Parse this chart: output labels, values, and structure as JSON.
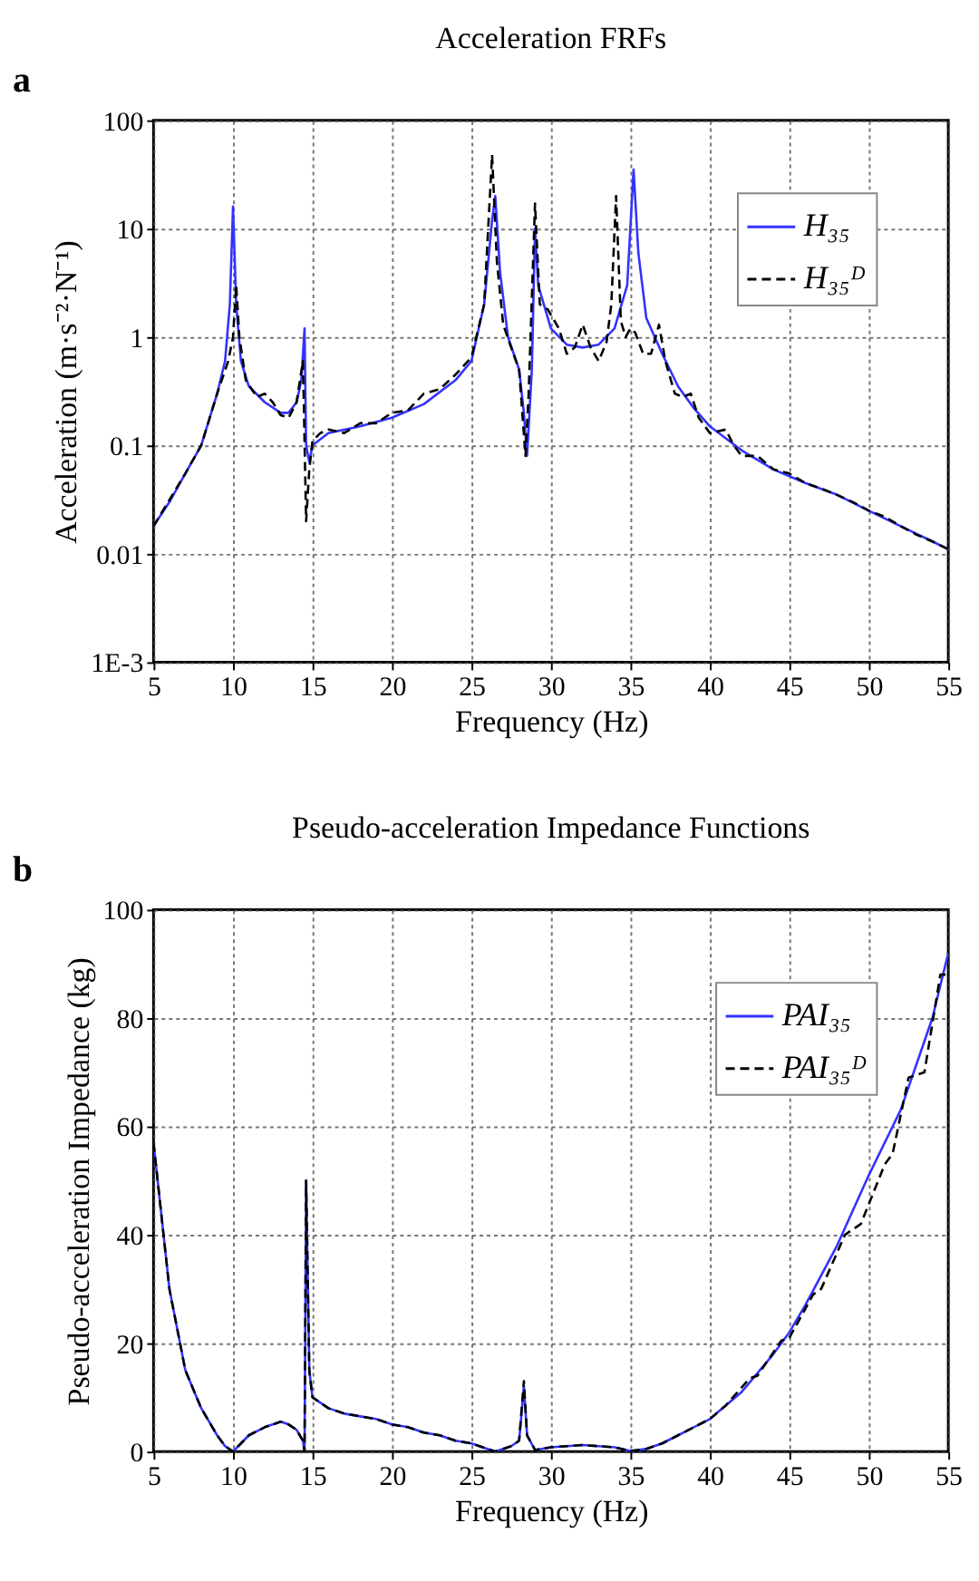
{
  "chart_data": [
    {
      "type": "line",
      "title": "Acceleration FRFs",
      "xlabel": "Frequency (Hz)",
      "ylabel": "Acceleration (m·s⁻²·N⁻¹)",
      "annotations": [
        "a"
      ],
      "log": true,
      "grid": true,
      "legend": "top right",
      "xlim": [
        5,
        55
      ],
      "xticks": [
        5,
        10,
        15,
        20,
        25,
        30,
        35,
        40,
        45,
        50,
        55
      ],
      "ylim": [
        0.001,
        100
      ],
      "yticks": [
        {
          "value": 0.001,
          "label": "1E-3"
        },
        0.01,
        0.1,
        1,
        10,
        100
      ],
      "series": [
        {
          "name": "H₃₅",
          "color": "#3333ff",
          "line_style": "solid",
          "x": [
            5,
            6,
            7,
            8,
            9,
            9.5,
            9.8,
            10,
            10.2,
            10.5,
            11,
            12,
            13,
            13.5,
            14,
            14.3,
            14.5,
            14.6,
            14.8,
            15,
            16,
            18,
            20,
            22,
            24,
            25,
            25.8,
            26.3,
            26.5,
            26.8,
            27.3,
            28,
            28.3,
            28.5,
            28.8,
            29,
            29.2,
            30,
            31,
            32,
            33,
            34,
            34.8,
            35.2,
            35.5,
            36,
            37,
            38,
            39,
            40,
            42,
            44,
            46,
            48,
            50,
            52,
            54,
            55
          ],
          "values": [
            0.018,
            0.03,
            0.055,
            0.1,
            0.3,
            0.6,
            2,
            16,
            2,
            0.6,
            0.35,
            0.25,
            0.2,
            0.2,
            0.25,
            0.4,
            1.2,
            0.1,
            0.07,
            0.1,
            0.13,
            0.15,
            0.18,
            0.24,
            0.4,
            0.6,
            2,
            12,
            20,
            4,
            1,
            0.5,
            0.2,
            0.08,
            0.5,
            10,
            3,
            1.2,
            0.85,
            0.8,
            0.85,
            1.2,
            3,
            35,
            6,
            1.5,
            0.7,
            0.35,
            0.22,
            0.15,
            0.09,
            0.06,
            0.045,
            0.035,
            0.025,
            0.018,
            0.013,
            0.011
          ]
        },
        {
          "name": "H₃₅ᴰ",
          "color": "#000000",
          "line_style": "dashed",
          "x": [
            5,
            7,
            8,
            9,
            9.7,
            10,
            10.2,
            10.4,
            10.8,
            11.5,
            12,
            12.5,
            13,
            13.5,
            14,
            14.4,
            14.6,
            14.8,
            15,
            15.5,
            16,
            17,
            18,
            19,
            20,
            21,
            22,
            23,
            24,
            25,
            25.8,
            26.3,
            26.6,
            27,
            27.5,
            28,
            28.4,
            28.6,
            29,
            29.3,
            29.8,
            30.5,
            31,
            31.5,
            32,
            32.5,
            33,
            33.5,
            33.8,
            34.1,
            34.4,
            34.7,
            35,
            35.3,
            35.8,
            36.3,
            36.8,
            37.2,
            37.8,
            38.3,
            38.8,
            39.3,
            40,
            41,
            41.5,
            42,
            43,
            44,
            45,
            46,
            47,
            48,
            49,
            50,
            51,
            52,
            53,
            54,
            55
          ],
          "values": [
            0.018,
            0.055,
            0.1,
            0.3,
            0.6,
            1,
            3,
            1,
            0.4,
            0.28,
            0.3,
            0.25,
            0.19,
            0.18,
            0.25,
            0.6,
            0.02,
            0.06,
            0.11,
            0.13,
            0.14,
            0.13,
            0.16,
            0.16,
            0.2,
            0.21,
            0.3,
            0.33,
            0.45,
            0.65,
            2,
            48,
            5,
            1.3,
            0.8,
            0.5,
            0.08,
            0.3,
            17,
            2,
            1.8,
            1.2,
            0.7,
            0.8,
            1.3,
            0.8,
            0.6,
            0.9,
            2,
            20,
            1.4,
            1,
            1.2,
            1.1,
            0.7,
            0.7,
            1.3,
            0.6,
            0.3,
            0.28,
            0.3,
            0.18,
            0.13,
            0.14,
            0.1,
            0.08,
            0.08,
            0.06,
            0.055,
            0.045,
            0.04,
            0.035,
            0.03,
            0.025,
            0.022,
            0.018,
            0.015,
            0.013,
            0.011
          ]
        }
      ]
    },
    {
      "type": "line",
      "title": "Pseudo-acceleration Impedance Functions",
      "xlabel": "Frequency (Hz)",
      "ylabel": "Pseudo-acceleration Impedance (kg)",
      "annotations": [
        "b"
      ],
      "grid": true,
      "legend": "top right",
      "xlim": [
        5,
        55
      ],
      "xticks": [
        5,
        10,
        15,
        20,
        25,
        30,
        35,
        40,
        45,
        50,
        55
      ],
      "ylim": [
        0,
        100
      ],
      "yticks": [
        0,
        20,
        40,
        60,
        80,
        100
      ],
      "series": [
        {
          "name": "PAI₃₅",
          "color": "#3333ff",
          "line_style": "solid",
          "x": [
            5,
            6,
            7,
            8,
            9,
            9.5,
            10,
            10.5,
            11,
            12,
            13,
            13.5,
            14,
            14.4,
            14.5,
            14.6,
            14.8,
            15,
            16,
            17,
            18,
            19,
            20,
            21,
            22,
            23,
            24,
            25,
            26,
            26.5,
            27,
            27.5,
            28,
            28.3,
            28.5,
            29,
            30,
            31,
            32,
            33,
            34,
            35,
            36,
            37,
            38,
            40,
            42,
            44,
            45,
            46,
            48,
            50,
            52,
            54,
            55
          ],
          "values": [
            57,
            30,
            15,
            8,
            3,
            1,
            0,
            1.5,
            3,
            4.5,
            5.5,
            5,
            4,
            2,
            0,
            50,
            15,
            10,
            8,
            7,
            6.5,
            6,
            5,
            4.5,
            3.5,
            3,
            2,
            1.5,
            0.5,
            0,
            0.5,
            1,
            2,
            12,
            3,
            0.3,
            0.8,
            1,
            1.2,
            1,
            0.8,
            0.1,
            0.5,
            1.5,
            3,
            6,
            11,
            18,
            22,
            27,
            38,
            51,
            63,
            80,
            92
          ]
        },
        {
          "name": "PAI₃₅ᴰ",
          "color": "#000000",
          "line_style": "dashed",
          "x": [
            5,
            6,
            7,
            8,
            9,
            9.5,
            10,
            10.5,
            11,
            12,
            13,
            13.5,
            14,
            14.4,
            14.5,
            14.6,
            14.8,
            15,
            16,
            17,
            18,
            19,
            20,
            21,
            22,
            23,
            24,
            25,
            26,
            26.5,
            27,
            27.5,
            28,
            28.3,
            28.5,
            29,
            30,
            31,
            32,
            33,
            34,
            35,
            36,
            37,
            38,
            40,
            41,
            42.5,
            43,
            44.5,
            45,
            46.5,
            47,
            48.5,
            49.5,
            51,
            51.5,
            52.5,
            53.5,
            54.5,
            55
          ],
          "values": [
            57,
            30,
            15,
            8,
            3,
            1,
            0,
            1.5,
            3,
            4.5,
            5.5,
            5,
            4,
            2,
            0,
            50,
            15,
            10,
            8,
            7,
            6.5,
            6,
            5,
            4.5,
            3.5,
            3,
            2,
            1.5,
            0.5,
            0,
            0.5,
            1,
            2,
            13,
            3,
            0.3,
            0.8,
            1,
            1.2,
            1,
            0.8,
            0.1,
            0.5,
            1.5,
            3,
            6,
            8.5,
            13.5,
            14,
            20.5,
            21,
            29,
            30,
            40,
            42,
            53,
            55,
            69,
            70,
            88,
            88
          ]
        }
      ]
    }
  ]
}
